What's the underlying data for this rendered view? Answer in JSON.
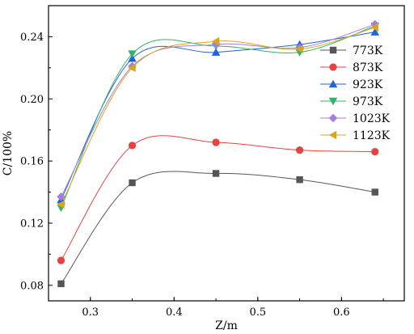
{
  "chart_data": {
    "type": "line",
    "xlabel": "Z/m",
    "ylabel": "C/100%",
    "xlim": [
      0.25,
      0.675
    ],
    "ylim": [
      0.07,
      0.26
    ],
    "xticks": [
      0.3,
      0.4,
      0.5,
      0.6
    ],
    "yticks": [
      0.08,
      0.12,
      0.16,
      0.2,
      0.24
    ],
    "x_tick_labels": [
      "0.3",
      "0.4",
      "0.5",
      "0.6"
    ],
    "y_tick_labels": [
      "0.08",
      "0.12",
      "0.16",
      "0.20",
      "0.24"
    ],
    "grid": false,
    "legend_position": "right",
    "series": [
      {
        "name": "773K",
        "marker": "square",
        "color": "#555555",
        "x": [
          0.265,
          0.35,
          0.45,
          0.55,
          0.64
        ],
        "y": [
          0.081,
          0.146,
          0.152,
          0.148,
          0.14
        ]
      },
      {
        "name": "873K",
        "marker": "circle",
        "color": "#e8423e",
        "x": [
          0.265,
          0.35,
          0.45,
          0.55,
          0.64
        ],
        "y": [
          0.096,
          0.17,
          0.172,
          0.167,
          0.166
        ]
      },
      {
        "name": "923K",
        "marker": "triangle-up",
        "color": "#2062d8",
        "x": [
          0.265,
          0.35,
          0.45,
          0.55,
          0.64
        ],
        "y": [
          0.135,
          0.226,
          0.23,
          0.235,
          0.243
        ]
      },
      {
        "name": "973K",
        "marker": "triangle-down",
        "color": "#2fb36a",
        "x": [
          0.265,
          0.35,
          0.45,
          0.55,
          0.64
        ],
        "y": [
          0.13,
          0.229,
          0.234,
          0.23,
          0.247
        ]
      },
      {
        "name": "1023K",
        "marker": "diamond",
        "color": "#a27ee0",
        "x": [
          0.265,
          0.35,
          0.45,
          0.55,
          0.64
        ],
        "y": [
          0.137,
          0.221,
          0.235,
          0.233,
          0.248
        ]
      },
      {
        "name": "1123K",
        "marker": "triangle-left",
        "color": "#d9a617",
        "x": [
          0.265,
          0.35,
          0.45,
          0.55,
          0.64
        ],
        "y": [
          0.132,
          0.22,
          0.237,
          0.232,
          0.246
        ]
      }
    ]
  }
}
